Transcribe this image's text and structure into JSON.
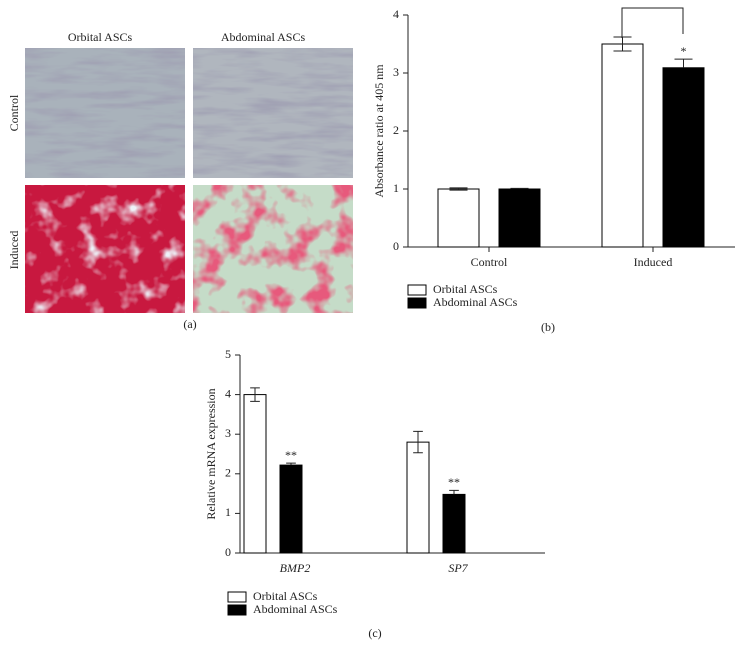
{
  "panel_a": {
    "columns": [
      "Orbital ASCs",
      "Abdominal ASCs"
    ],
    "rows": [
      "Control",
      "Induced"
    ],
    "label": "(a)"
  },
  "chart_data": [
    {
      "type": "bar",
      "panel_label": "(b)",
      "ylabel": "Absorbance ratio at 405 nm",
      "categories": [
        "Control",
        "Induced"
      ],
      "category_font_style": "normal",
      "series": [
        {
          "name": "Orbital ASCs",
          "color": "#ffffff",
          "values": [
            1.0,
            3.5
          ],
          "errors": [
            0.02,
            0.12
          ],
          "significance": [
            null,
            null
          ]
        },
        {
          "name": "Abdominal ASCs",
          "color": "#000000",
          "values": [
            1.0,
            3.09
          ],
          "errors": [
            0.01,
            0.15
          ],
          "significance": [
            null,
            "*"
          ]
        }
      ],
      "ylim": [
        0,
        4
      ],
      "yticks": [
        0,
        1,
        2,
        3,
        4
      ]
    },
    {
      "type": "bar",
      "panel_label": "(c)",
      "ylabel": "Relative mRNA expression",
      "categories": [
        "BMP2",
        "SP7"
      ],
      "category_font_style": "italic",
      "series": [
        {
          "name": "Orbital ASCs",
          "color": "#ffffff",
          "values": [
            4.0,
            2.8
          ],
          "errors": [
            0.17,
            0.27
          ],
          "significance": [
            null,
            null
          ]
        },
        {
          "name": "Abdominal ASCs",
          "color": "#000000",
          "values": [
            2.22,
            1.48
          ],
          "errors": [
            0.05,
            0.1
          ],
          "significance": [
            "**",
            "**"
          ]
        }
      ],
      "ylim": [
        0,
        5
      ],
      "yticks": [
        0,
        1,
        2,
        3,
        4,
        5
      ]
    }
  ]
}
